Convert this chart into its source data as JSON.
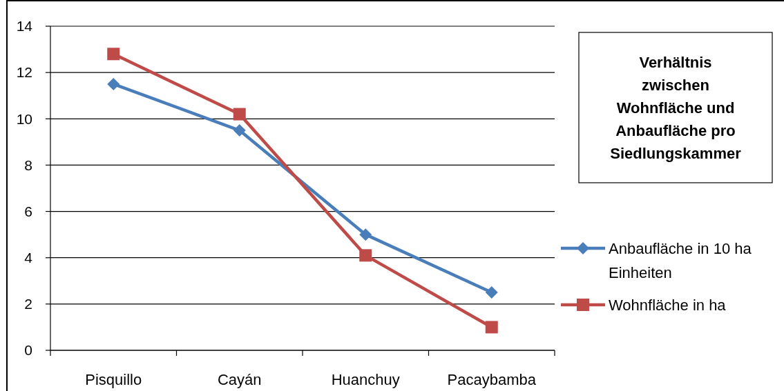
{
  "chart_data": {
    "type": "line",
    "title": "Verhältnis zwischen Wohnfläche und Anbaufläche pro Siedlungskammer",
    "categories": [
      "Pisquillo",
      "Cayán",
      "Huanchuy",
      "Pacaybamba"
    ],
    "series": [
      {
        "name": "Anbaufläche in 10 ha Einheiten",
        "color": "#4a7ebb",
        "marker": "diamond",
        "values": [
          11.5,
          9.5,
          5.0,
          2.5
        ]
      },
      {
        "name": "Wohnfläche in ha",
        "color": "#be4b48",
        "marker": "square",
        "values": [
          12.8,
          10.2,
          4.1,
          1.0
        ]
      }
    ],
    "ylim": [
      0,
      14
    ],
    "yticks": [
      0,
      2,
      4,
      6,
      8,
      10,
      12,
      14
    ],
    "grid": "y",
    "legend": "right",
    "line_style": "solid"
  }
}
